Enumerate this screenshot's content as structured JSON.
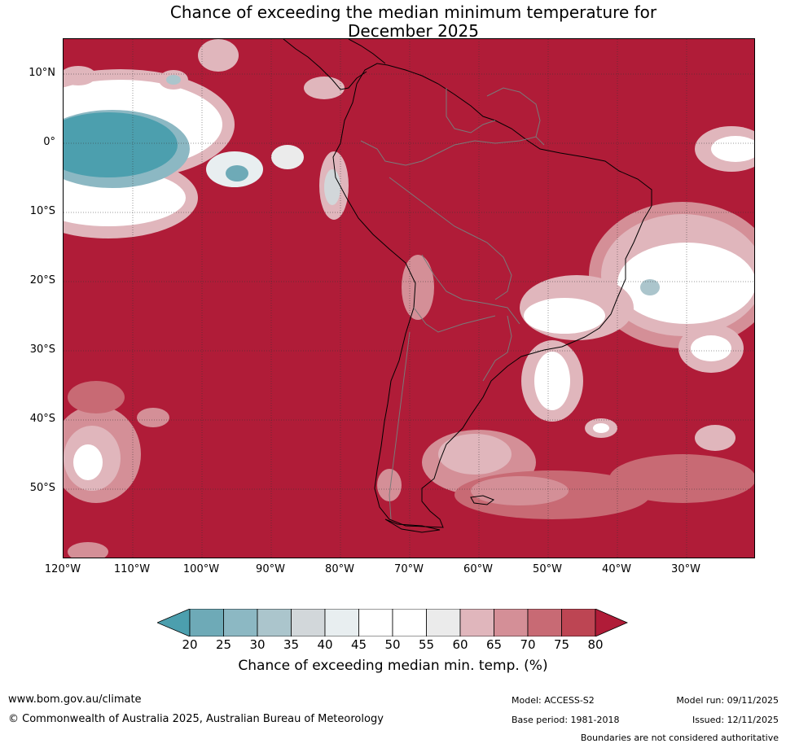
{
  "title": {
    "line1": "Chance of exceeding the median minimum temperature for",
    "line2": "December 2025"
  },
  "map": {
    "region": "South America",
    "lat_labels": [
      "10°N",
      "0°",
      "10°S",
      "20°S",
      "30°S",
      "40°S",
      "50°S"
    ],
    "lon_labels": [
      "120°W",
      "110°W",
      "100°W",
      "90°W",
      "80°W",
      "70°W",
      "60°W",
      "50°W",
      "40°W",
      "30°W"
    ],
    "background_color": "#b01c38",
    "coastline_color": "#000000",
    "border_color": "#7a7a7a"
  },
  "legend": {
    "ticks": [
      "20",
      "25",
      "30",
      "35",
      "40",
      "45",
      "50",
      "55",
      "60",
      "65",
      "70",
      "75",
      "80"
    ],
    "colors": [
      "#4c9fae",
      "#6eaab7",
      "#8cb8c3",
      "#abc5cc",
      "#d2d7da",
      "#e8eef0",
      "#ffffff",
      "#ffffff",
      "#ebebeb",
      "#e0b6bc",
      "#d48f97",
      "#c86a74",
      "#bd4553",
      "#b01c38"
    ],
    "label": "Chance of exceeding median min. temp. (%)"
  },
  "footer": {
    "website": "www.bom.gov.au/climate",
    "copyright": "© Commonwealth of Australia 2025, Australian Bureau of Meteorology",
    "model": "Model: ACCESS-S2",
    "base_period": "Base period: 1981-2018",
    "model_run": "Model run: 09/11/2025",
    "issued": "Issued: 12/11/2025",
    "disclaimer": "Boundaries are not considered authoritative"
  }
}
